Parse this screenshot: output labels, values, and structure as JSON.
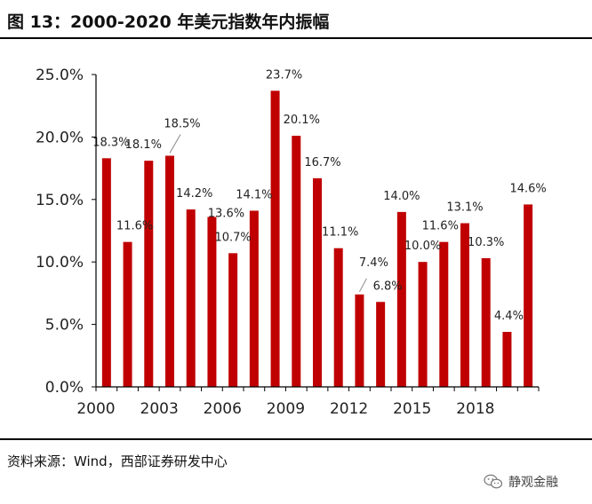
{
  "header": {
    "title": "图 13：2000-2020 年美元指数年内振幅"
  },
  "footer": {
    "source": "资料来源：Wind，西部证券研发中心",
    "watermark": "静观金融",
    "watermark_icon": "wechat-icon"
  },
  "colors": {
    "bar": "#c00000",
    "axis": "#000000",
    "text": "#222222"
  },
  "chart_data": {
    "type": "bar",
    "title": "",
    "xlabel": "",
    "ylabel": "",
    "ylim": [
      0,
      25
    ],
    "y_unit": "%",
    "grid": false,
    "legend": "none",
    "yticks": [
      "0.0%",
      "5.0%",
      "10.0%",
      "15.0%",
      "20.0%",
      "25.0%"
    ],
    "xticks": [
      "2000",
      "2003",
      "2006",
      "2009",
      "2012",
      "2015",
      "2018"
    ],
    "categories": [
      "2000",
      "2001",
      "2002",
      "2003",
      "2004",
      "2005",
      "2006",
      "2007",
      "2008",
      "2009",
      "2010",
      "2011",
      "2012",
      "2013",
      "2014",
      "2015",
      "2016",
      "2017",
      "2018",
      "2019",
      "2020"
    ],
    "values": [
      18.3,
      11.6,
      18.1,
      18.5,
      14.2,
      13.6,
      10.7,
      14.1,
      23.7,
      20.1,
      16.7,
      11.1,
      7.4,
      6.8,
      14.0,
      10.0,
      11.6,
      13.1,
      10.3,
      4.4,
      14.6
    ],
    "data_labels": [
      "18.3%",
      "11.6%",
      "18.1%",
      "18.5%",
      "14.2%",
      "13.6%",
      "10.7%",
      "14.1%",
      "23.7%",
      "20.1%",
      "16.7%",
      "11.1%",
      "7.4%",
      "6.8%",
      "14.0%",
      "10.0%",
      "11.6%",
      "13.1%",
      "10.3%",
      "4.4%",
      "14.6%"
    ]
  }
}
